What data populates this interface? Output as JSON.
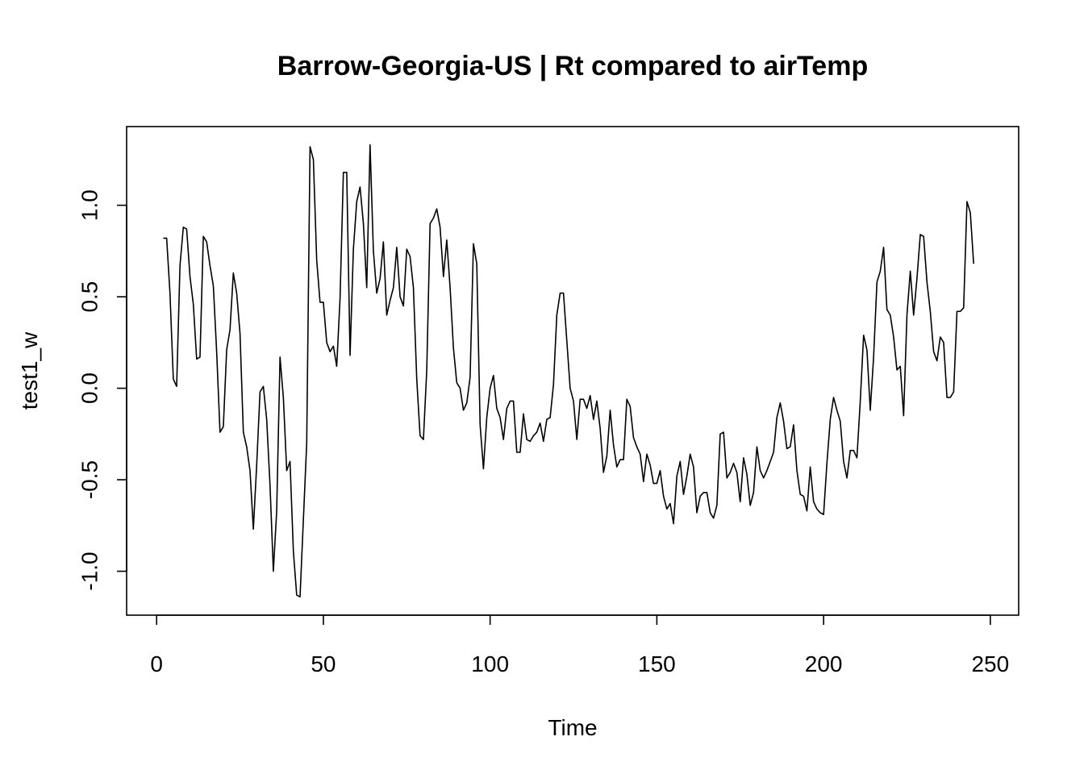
{
  "chart_data": {
    "type": "line",
    "title": "Barrow-Georgia-US | Rt compared to airTemp",
    "xlabel": "Time",
    "ylabel": "test1_w",
    "xlim": [
      -9,
      258.5
    ],
    "ylim": [
      -1.24,
      1.43
    ],
    "x_ticks": [
      0,
      50,
      100,
      150,
      200,
      250
    ],
    "y_ticks": [
      -1.0,
      -0.5,
      0.0,
      0.5,
      1.0
    ],
    "x_tick_labels": [
      "0",
      "50",
      "100",
      "150",
      "200",
      "250"
    ],
    "y_tick_labels": [
      "-1.0",
      "-0.5",
      "0.0",
      "0.5",
      "1.0"
    ],
    "grid": false,
    "series": [
      {
        "x_start": 2,
        "values": [
          0.82,
          0.82,
          0.52,
          0.05,
          0.01,
          0.67,
          0.88,
          0.87,
          0.61,
          0.46,
          0.16,
          0.17,
          0.83,
          0.8,
          0.67,
          0.56,
          0.2,
          -0.24,
          -0.21,
          0.21,
          0.32,
          0.63,
          0.52,
          0.3,
          -0.24,
          -0.32,
          -0.45,
          -0.77,
          -0.42,
          -0.02,
          0.01,
          -0.17,
          -0.53,
          -1.0,
          -0.67,
          0.17,
          -0.05,
          -0.45,
          -0.4,
          -0.89,
          -1.13,
          -1.14,
          -0.72,
          -0.3,
          1.32,
          1.25,
          0.7,
          0.47,
          0.47,
          0.25,
          0.2,
          0.23,
          0.12,
          0.49,
          1.18,
          1.18,
          0.18,
          0.76,
          1.02,
          1.1,
          0.9,
          0.55,
          1.33,
          0.75,
          0.52,
          0.6,
          0.8,
          0.4,
          0.48,
          0.55,
          0.77,
          0.5,
          0.45,
          0.76,
          0.72,
          0.55,
          0.05,
          -0.26,
          -0.28,
          0.1,
          0.9,
          0.93,
          0.98,
          0.88,
          0.61,
          0.81,
          0.55,
          0.22,
          0.03,
          0.0,
          -0.12,
          -0.08,
          0.06,
          0.79,
          0.68,
          -0.2,
          -0.44,
          -0.16,
          0.0,
          0.07,
          -0.11,
          -0.16,
          -0.28,
          -0.11,
          -0.07,
          -0.07,
          -0.35,
          -0.35,
          -0.14,
          -0.28,
          -0.29,
          -0.26,
          -0.24,
          -0.19,
          -0.29,
          -0.17,
          -0.16,
          0.02,
          0.4,
          0.52,
          0.52,
          0.26,
          0.0,
          -0.07,
          -0.28,
          -0.06,
          -0.06,
          -0.11,
          -0.04,
          -0.17,
          -0.07,
          -0.22,
          -0.46,
          -0.37,
          -0.12,
          -0.31,
          -0.43,
          -0.39,
          -0.39,
          -0.06,
          -0.1,
          -0.27,
          -0.32,
          -0.36,
          -0.51,
          -0.36,
          -0.42,
          -0.52,
          -0.52,
          -0.45,
          -0.59,
          -0.66,
          -0.63,
          -0.74,
          -0.48,
          -0.4,
          -0.58,
          -0.48,
          -0.36,
          -0.43,
          -0.68,
          -0.59,
          -0.57,
          -0.57,
          -0.68,
          -0.71,
          -0.64,
          -0.25,
          -0.24,
          -0.49,
          -0.46,
          -0.41,
          -0.46,
          -0.62,
          -0.38,
          -0.47,
          -0.64,
          -0.57,
          -0.32,
          -0.45,
          -0.49,
          -0.45,
          -0.4,
          -0.35,
          -0.16,
          -0.08,
          -0.18,
          -0.33,
          -0.32,
          -0.2,
          -0.45,
          -0.58,
          -0.59,
          -0.67,
          -0.43,
          -0.62,
          -0.66,
          -0.68,
          -0.69,
          -0.41,
          -0.17,
          -0.05,
          -0.12,
          -0.18,
          -0.4,
          -0.49,
          -0.34,
          -0.34,
          -0.38,
          -0.07,
          0.29,
          0.21,
          -0.12,
          0.17,
          0.58,
          0.64,
          0.77,
          0.43,
          0.4,
          0.28,
          0.1,
          0.12,
          -0.15,
          0.4,
          0.64,
          0.4,
          0.6,
          0.84,
          0.83,
          0.58,
          0.42,
          0.2,
          0.15,
          0.28,
          0.25,
          -0.05,
          -0.05,
          -0.02,
          0.42,
          0.42,
          0.44,
          1.02,
          0.96,
          0.68
        ]
      }
    ]
  }
}
